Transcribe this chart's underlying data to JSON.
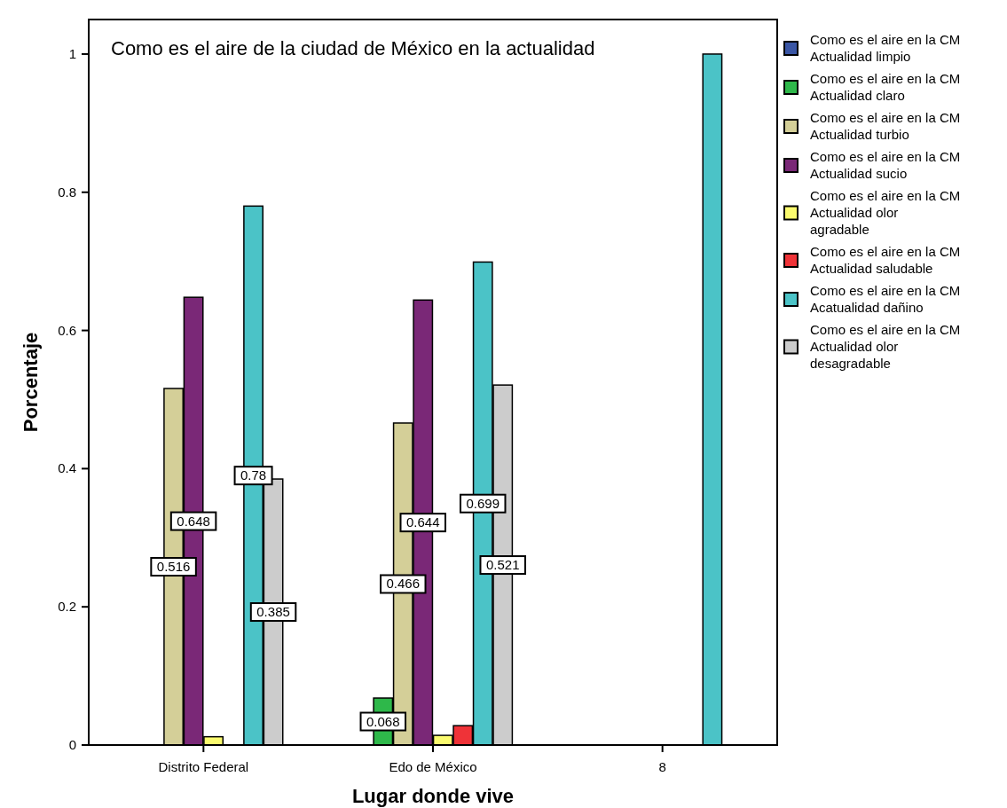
{
  "chart_data": {
    "type": "bar",
    "title": "Como es el aire de la ciudad de México en la actualidad",
    "xlabel": "Lugar donde vive",
    "ylabel": "Porcentaje",
    "categories": [
      "Distrito Federal",
      "Edo de México",
      "8"
    ],
    "series": [
      {
        "name": "Como es el aire en la CM Actualidad limpio",
        "color": "#3a56a5",
        "values": [
          0,
          0,
          0
        ],
        "value_labels": [
          null,
          null,
          null
        ]
      },
      {
        "name": "Como es el aire en la CM Actualidad claro",
        "color": "#2eb84a",
        "values": [
          0,
          0.068,
          0
        ],
        "value_labels": [
          null,
          "0.068",
          null
        ]
      },
      {
        "name": "Como es el aire en la CM Actualidad turbio",
        "color": "#d4cf98",
        "values": [
          0.516,
          0.466,
          0
        ],
        "value_labels": [
          "0.516",
          "0.466",
          null
        ]
      },
      {
        "name": "Como es el aire en la CM Actualidad sucio",
        "color": "#7a2877",
        "values": [
          0.648,
          0.644,
          0
        ],
        "value_labels": [
          "0.648",
          "0.644",
          null
        ]
      },
      {
        "name": "Como es el aire en la CM Actualidad olor agradable",
        "color": "#fafa6e",
        "values": [
          0.012,
          0.014,
          0
        ],
        "value_labels": [
          null,
          null,
          null
        ]
      },
      {
        "name": "Como es el aire en la CM Actualidad saludable",
        "color": "#ef3338",
        "values": [
          0,
          0.028,
          0
        ],
        "value_labels": [
          null,
          null,
          null
        ]
      },
      {
        "name": "Como es el aire en la CM Acatualidad dañino",
        "color": "#4bc3c7",
        "values": [
          0.78,
          0.699,
          1
        ],
        "value_labels": [
          "0.78",
          "0.699",
          null
        ]
      },
      {
        "name": "Como es el aire en la CM Actualidad olor desagradable",
        "color": "#cccccc",
        "values": [
          0.385,
          0.521,
          0
        ],
        "value_labels": [
          "0.385",
          "0.521",
          null
        ]
      }
    ],
    "ylim": [
      0,
      1.05
    ],
    "yticks": [
      0,
      0.2,
      0.4,
      0.6,
      0.8,
      1
    ],
    "grid": false,
    "legend": "right"
  }
}
